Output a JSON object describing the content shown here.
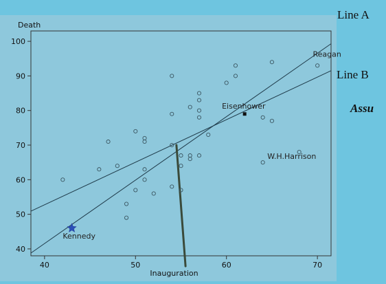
{
  "side_labels": {
    "line_a": "Line A",
    "line_b": "Line B",
    "assu": "Assu"
  },
  "chart_data": {
    "type": "scatter",
    "title": "",
    "xlabel": "Inauguration",
    "ylabel": "Death",
    "xlim": [
      38.5,
      71.5
    ],
    "ylim": [
      38,
      103
    ],
    "xticks": [
      40,
      50,
      60,
      70
    ],
    "yticks": [
      40,
      50,
      60,
      70,
      80,
      90,
      100
    ],
    "grid": false,
    "background": "#8fc9dd",
    "points": [
      [
        42,
        60
      ],
      [
        46,
        63
      ],
      [
        47,
        71
      ],
      [
        48,
        64
      ],
      [
        49,
        49
      ],
      [
        49,
        53
      ],
      [
        50,
        57
      ],
      [
        50,
        74
      ],
      [
        51,
        72
      ],
      [
        51,
        71
      ],
      [
        51,
        60
      ],
      [
        51,
        63
      ],
      [
        52,
        56
      ],
      [
        54,
        90
      ],
      [
        54,
        79
      ],
      [
        54,
        70
      ],
      [
        54,
        58
      ],
      [
        55,
        64
      ],
      [
        55,
        57
      ],
      [
        55,
        67
      ],
      [
        56,
        81
      ],
      [
        56,
        67
      ],
      [
        56,
        66
      ],
      [
        57,
        85
      ],
      [
        57,
        83
      ],
      [
        57,
        80
      ],
      [
        57,
        78
      ],
      [
        57,
        67
      ],
      [
        58,
        73
      ],
      [
        60,
        88
      ],
      [
        61,
        90
      ],
      [
        61,
        93
      ],
      [
        64,
        78
      ],
      [
        64,
        65
      ],
      [
        65,
        77
      ],
      [
        65,
        94
      ],
      [
        68,
        68
      ],
      [
        70,
        93
      ]
    ],
    "highlighted": [
      {
        "label": "Eisenhower",
        "x": 62,
        "y": 79,
        "marker": "square"
      },
      {
        "label": "Kennedy",
        "x": 43,
        "y": 46,
        "marker": "star"
      }
    ],
    "annotations": [
      {
        "text": "Reagan",
        "x": 69.5,
        "y": 95.5
      },
      {
        "text": "Eisenhower",
        "x": 59.5,
        "y": 80.5
      },
      {
        "text": "W.H.Harrison",
        "x": 64.5,
        "y": 66
      },
      {
        "text": "Kennedy",
        "x": 42,
        "y": 43
      }
    ],
    "lines": [
      {
        "name": "Line A",
        "x": [
          38.5,
          71.5
        ],
        "y": [
          38.8,
          99.3
        ]
      },
      {
        "name": "Line B",
        "x": [
          38.5,
          71.5
        ],
        "y": [
          50.9,
          91.5
        ]
      }
    ],
    "vertical_mark": {
      "x": [
        54.5,
        55.5
      ],
      "y": [
        70,
        35
      ]
    }
  }
}
